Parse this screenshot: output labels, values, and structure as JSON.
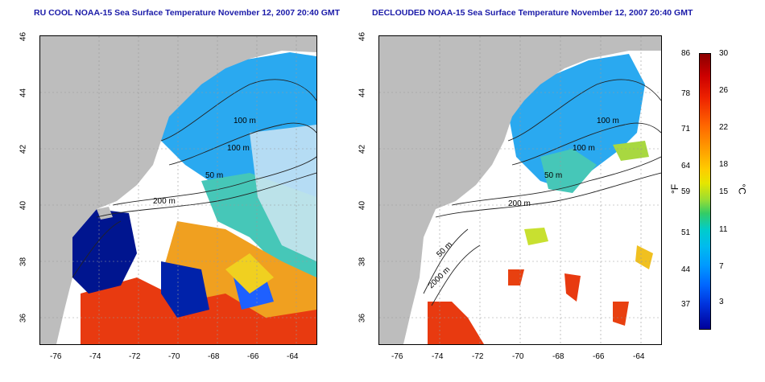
{
  "titles": {
    "left": "RU COOL NOAA-15 Sea Surface Temperature November 12, 2007 20:40 GMT",
    "right": "DECLOUDED NOAA-15 Sea Surface Temperature November 12, 2007 20:40 GMT"
  },
  "axes": {
    "x_ticks": [
      "-76",
      "-74",
      "-72",
      "-70",
      "-68",
      "-66",
      "-64"
    ],
    "y_ticks": [
      "46",
      "44",
      "42",
      "40",
      "38",
      "36"
    ]
  },
  "contour_labels": {
    "left": [
      "100 m",
      "100 m",
      "50 m",
      "200 m"
    ],
    "right": [
      "100 m",
      "100 m",
      "50 m",
      "200 m",
      "50 m",
      "2000 m"
    ]
  },
  "colorbar": {
    "fahrenheit_label": "°F",
    "celsius_label": "°C",
    "fahrenheit_ticks": [
      "86",
      "78",
      "71",
      "64",
      "59",
      "51",
      "44",
      "37"
    ],
    "celsius_ticks": [
      "30",
      "26",
      "22",
      "18",
      "15",
      "11",
      "7",
      "3"
    ]
  },
  "colors": {
    "land": "#bdbdbd",
    "title": "#1a1aa8",
    "cold": "#00108f",
    "cool": "#1e90ff",
    "mid": "#33ccdd",
    "warm": "#f0d020",
    "hot": "#e83a10"
  }
}
